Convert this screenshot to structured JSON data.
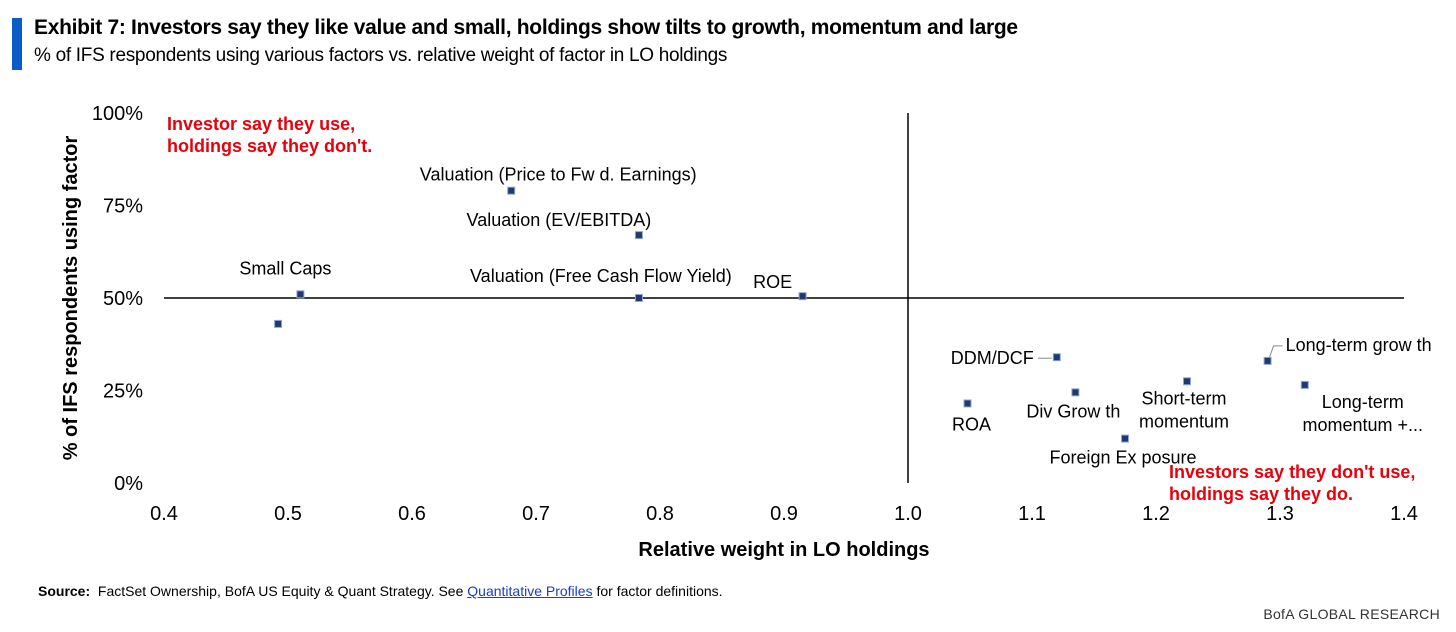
{
  "header": {
    "title": "Exhibit 7: Investors say they like value and small, holdings show tilts to growth, momentum and large",
    "subtitle": "% of IFS respondents using various factors vs. relative weight of factor in LO holdings"
  },
  "footer": {
    "source_label": "Source:",
    "source_text_1": "FactSet Ownership,  BofA US Equity & Quant Strategy. See ",
    "source_link": "Quantitative Profiles",
    "source_text_2": " for factor definitions.",
    "brand": "BofA GLOBAL RESEARCH"
  },
  "colors": {
    "accent_bar": "#0a5cc8",
    "marker_fill": "#1f3a6e",
    "marker_stroke": "#8fa8d0",
    "annotation": "#e8000b",
    "axis": "#000000"
  },
  "chart_data": {
    "type": "scatter",
    "xlabel": "Relative weight in LO holdings",
    "ylabel": "% of IFS respondents using factor",
    "xlim": [
      0.4,
      1.4
    ],
    "ylim": [
      0,
      100
    ],
    "x_ticks": [
      "0.4",
      "0.5",
      "0.6",
      "0.7",
      "0.8",
      "0.9",
      "1.0",
      "1.1",
      "1.2",
      "1.3",
      "1.4"
    ],
    "y_ticks": [
      "0%",
      "25%",
      "50%",
      "75%",
      "100%"
    ],
    "crosshair": {
      "x": 1.0,
      "y": 50
    },
    "grid": false,
    "legend": "none",
    "points": [
      {
        "label": "Small Caps",
        "x": 0.51,
        "y": 51
      },
      {
        "label": "",
        "x": 0.492,
        "y": 43
      },
      {
        "label": "Valuation (Price to Fw d. Earnings)",
        "x": 0.68,
        "y": 79
      },
      {
        "label": "Valuation (EV/EBITDA)",
        "x": 0.783,
        "y": 67
      },
      {
        "label": "Valuation (Free Cash Flow Yield)",
        "x": 0.783,
        "y": 50
      },
      {
        "label": "ROE",
        "x": 0.915,
        "y": 50.5
      },
      {
        "label": "DDM/DCF",
        "x": 1.12,
        "y": 34
      },
      {
        "label": "Long-term grow th",
        "x": 1.29,
        "y": 33
      },
      {
        "label": "Short-term\nmomentum",
        "x": 1.225,
        "y": 27.5
      },
      {
        "label": "Long-term\nmomentum +...",
        "x": 1.32,
        "y": 26.5
      },
      {
        "label": "Div  Grow th",
        "x": 1.135,
        "y": 24.5
      },
      {
        "label": "ROA",
        "x": 1.048,
        "y": 21.5
      },
      {
        "label": "Foreign Ex posure",
        "x": 1.175,
        "y": 12
      }
    ],
    "annotations": [
      {
        "text": "Investor say they use,\nholdings say they don't.",
        "quadrant": "top-left"
      },
      {
        "text": "Investors say they don't use,\nholdings say they do.",
        "quadrant": "bottom-right"
      }
    ]
  }
}
